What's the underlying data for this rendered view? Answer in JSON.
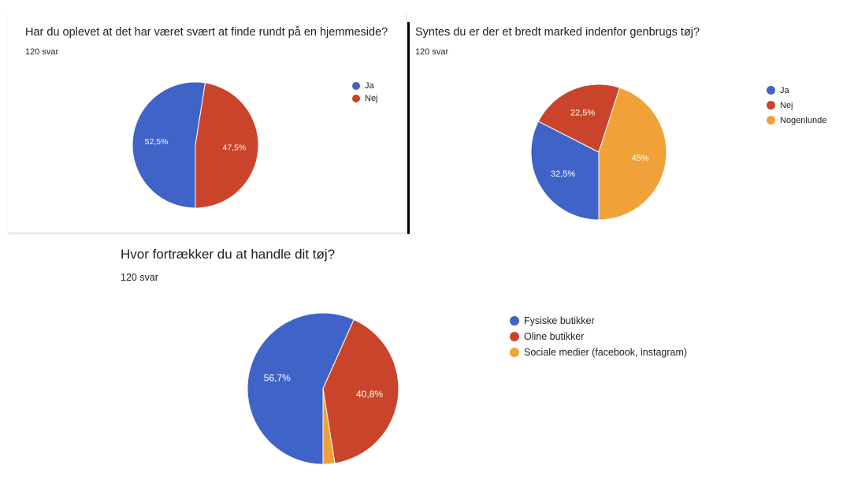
{
  "colors": {
    "blue": "#4063c8",
    "red": "#c9442a",
    "orange": "#f0a137"
  },
  "chart_data": [
    {
      "type": "pie",
      "title": "Har du oplevet at det har været svært at finde rundt på en hjemmeside?",
      "subtitle": "120 svar",
      "categories": [
        "Ja",
        "Nej"
      ],
      "values": [
        52.5,
        47.5
      ],
      "labels": [
        "52,5%",
        "47,5%"
      ],
      "colors": [
        "#4063c8",
        "#c9442a"
      ],
      "legend_position": "right"
    },
    {
      "type": "pie",
      "title": "Syntes du er der et bredt marked indenfor genbrugs tøj?",
      "subtitle": "120 svar",
      "categories": [
        "Ja",
        "Nej",
        "Nogenlunde"
      ],
      "values": [
        32.5,
        22.5,
        45
      ],
      "labels": [
        "32,5%",
        "22,5%",
        "45%"
      ],
      "colors": [
        "#4063c8",
        "#c9442a",
        "#f0a137"
      ],
      "legend_position": "right"
    },
    {
      "type": "pie",
      "title": "Hvor fortrækker du at handle dit tøj?",
      "subtitle": "120 svar",
      "categories": [
        "Fysiske butikker",
        "Oline butikker",
        "Sociale medier (facebook, instagram)"
      ],
      "values": [
        56.7,
        40.8,
        2.5
      ],
      "labels": [
        "56,7%",
        "40,8%",
        ""
      ],
      "colors": [
        "#4063c8",
        "#c9442a",
        "#f0a137"
      ],
      "legend_position": "right"
    }
  ]
}
